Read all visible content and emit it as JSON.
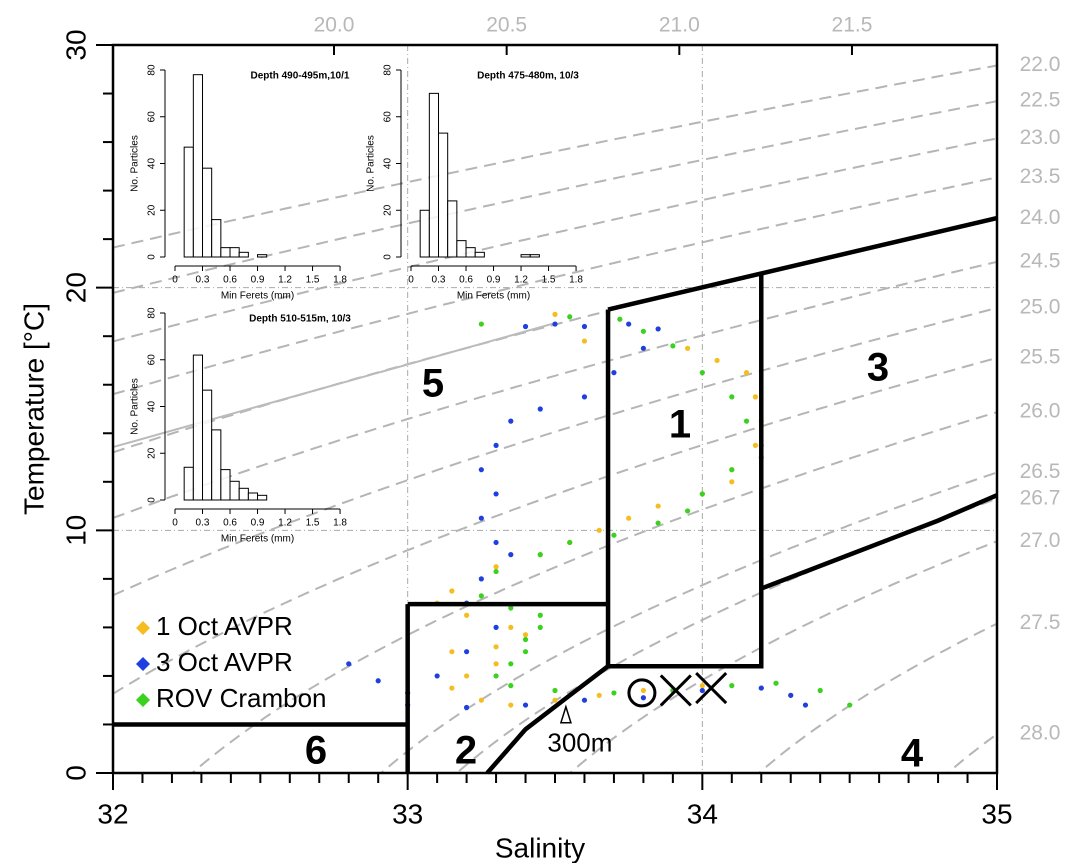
{
  "chart_data": [
    {
      "type": "scatter",
      "xlabel": "Salinity",
      "ylabel": "Temperature [°C]",
      "xlim": [
        32,
        35
      ],
      "ylim": [
        0,
        30
      ],
      "xticks": [
        32,
        33,
        34,
        35
      ],
      "yticks": [
        0,
        10,
        20,
        30
      ],
      "xminorticks": [
        32.1,
        32.2,
        32.3,
        32.4,
        32.5,
        32.6,
        32.7,
        32.8,
        32.9,
        33.1,
        33.2,
        33.3,
        33.4,
        33.5,
        33.6,
        33.7,
        33.8,
        33.9,
        34.1,
        34.2,
        34.3,
        34.4,
        34.5,
        34.6,
        34.7,
        34.8,
        34.9
      ],
      "yminorticks": [
        2,
        4,
        6,
        8,
        12,
        14,
        16,
        18,
        22,
        24,
        26,
        28
      ],
      "x2lim": [
        19.36,
        21.92
      ],
      "x2ticks": [
        {
          "value": 20.0,
          "label": "20.0"
        },
        {
          "value": 20.5,
          "label": "20.5"
        },
        {
          "value": 21.0,
          "label": "21.0"
        },
        {
          "value": 21.5,
          "label": "21.5"
        }
      ],
      "y2ticks": [
        {
          "value": 22.0,
          "label": "22.0"
        },
        {
          "value": 22.5,
          "label": "22.5"
        },
        {
          "value": 23.0,
          "label": "23.0"
        },
        {
          "value": 23.5,
          "label": "23.5"
        },
        {
          "value": 24.0,
          "label": "24.0"
        },
        {
          "value": 24.5,
          "label": "24.5"
        },
        {
          "value": 25.0,
          "label": "25.0"
        },
        {
          "value": 25.5,
          "label": "25.5"
        },
        {
          "value": 26.0,
          "label": "26.0"
        },
        {
          "value": 26.5,
          "label": "26.5"
        },
        26.7,
        {
          "value": 27.0,
          "label": "27.0"
        },
        {
          "value": 27.5,
          "label": "27.5"
        },
        {
          "value": 28.0,
          "label": "28.0"
        }
      ],
      "y2_scale": "sigma_t",
      "density_contours": true,
      "grid": true,
      "legend": "lower left",
      "series": [
        {
          "name": "1 Oct AVPR",
          "color": "#f5bd1f",
          "x": [
            33.5,
            33.6,
            33.68,
            33.85,
            33.95,
            34.05,
            34.15,
            34.18,
            34.2,
            34.18,
            34.1,
            34.1,
            34.0,
            33.85,
            33.75,
            33.65,
            33.55,
            33.45,
            33.3,
            33.15,
            33.1,
            33.2,
            33.35,
            33.4,
            33.3,
            33.15,
            33.3,
            33.2,
            33.15,
            33.25,
            33.2,
            33.35,
            33.5,
            33.65,
            33.8,
            34.0,
            34.2,
            34.3
          ],
          "values": [
            18.9,
            17.8,
            19.0,
            18.3,
            17.5,
            17.0,
            16.5,
            15.5,
            14.5,
            13.5,
            12.5,
            12.0,
            11.5,
            11.0,
            10.5,
            10.0,
            9.5,
            9.0,
            8.5,
            7.5,
            7.0,
            6.5,
            6.0,
            5.7,
            5.2,
            5.0,
            4.5,
            4.0,
            3.5,
            3.0,
            2.7,
            2.8,
            3.0,
            3.2,
            3.4,
            3.6,
            3.5,
            3.2
          ]
        },
        {
          "name": "3 Oct AVPR",
          "color": "#1f3fe0",
          "x": [
            33.4,
            33.5,
            33.6,
            33.75,
            33.85,
            33.8,
            33.7,
            33.6,
            33.45,
            33.35,
            33.3,
            33.25,
            33.3,
            33.25,
            33.3,
            33.35,
            33.25,
            33.2,
            33.3,
            33.2,
            33.1,
            33.0,
            32.9,
            32.8,
            33.0,
            33.2,
            33.4,
            33.6,
            33.8,
            34.0,
            34.2,
            34.3,
            34.35
          ],
          "values": [
            18.4,
            18.5,
            18.4,
            18.5,
            18.3,
            17.5,
            16.5,
            15.5,
            15.0,
            14.5,
            13.5,
            12.5,
            11.5,
            10.5,
            9.5,
            9.0,
            8.0,
            7.0,
            6.0,
            5.0,
            4.0,
            3.3,
            3.8,
            4.5,
            2.8,
            2.7,
            2.8,
            3.0,
            3.1,
            3.4,
            3.5,
            3.2,
            2.8
          ]
        },
        {
          "name": "ROV Crambon",
          "color": "#3bd11f",
          "x": [
            33.25,
            33.55,
            33.72,
            33.8,
            33.9,
            34.0,
            34.1,
            34.15,
            34.2,
            34.2,
            34.1,
            34.0,
            33.95,
            33.85,
            33.7,
            33.55,
            33.45,
            33.3,
            33.25,
            33.35,
            33.45,
            33.45,
            33.4,
            33.4,
            33.35,
            33.3,
            33.35,
            33.5,
            33.7,
            33.9,
            34.1,
            34.25,
            34.4,
            34.5
          ],
          "values": [
            18.5,
            18.8,
            18.7,
            18.2,
            17.6,
            16.5,
            15.5,
            14.5,
            13.5,
            13.0,
            12.5,
            11.5,
            10.8,
            10.3,
            9.8,
            9.5,
            9.0,
            8.3,
            7.3,
            6.8,
            6.5,
            6.0,
            5.5,
            5.0,
            4.5,
            4.0,
            3.6,
            3.4,
            3.3,
            3.4,
            3.6,
            3.7,
            3.4,
            2.8
          ]
        }
      ],
      "boundaries": [
        {
          "x": [
            33.68,
            35
          ],
          "y": [
            19.1,
            22.87
          ]
        },
        {
          "x": [
            33.68,
            33.68,
            34.2,
            34.2
          ],
          "y": [
            19.1,
            4.4,
            4.4,
            20.56
          ]
        },
        {
          "x": [
            33.0,
            33.68
          ],
          "y": [
            6.96,
            6.96
          ]
        },
        {
          "x": [
            33.0,
            33.0
          ],
          "y": [
            0,
            6.96
          ]
        },
        {
          "x": [
            32,
            33.0
          ],
          "y": [
            2.0,
            2.0
          ]
        },
        {
          "x": [
            33.27,
            33.4,
            33.55,
            33.68
          ],
          "y": [
            0,
            1.8,
            3.2,
            4.4
          ]
        },
        {
          "x": [
            34.2,
            34.5,
            34.8,
            35
          ],
          "y": [
            7.6,
            9.0,
            10.4,
            11.45
          ]
        }
      ],
      "reference_line": {
        "color": "#bbbbbb",
        "x": [
          32,
          33.5
        ],
        "y": [
          13.43,
          18.54
        ]
      },
      "region_labels": [
        "1",
        "2",
        "3",
        "4",
        "5",
        "6"
      ],
      "markers": [
        {
          "shape": "circle",
          "x": 33.795,
          "y": 3.3
        },
        {
          "shape": "cross",
          "x": 33.91,
          "y": 3.4
        },
        {
          "shape": "cross",
          "x": 34.03,
          "y": 3.5
        }
      ],
      "annotation": {
        "text": "300m",
        "x": 33.537,
        "y": 2.4
      }
    },
    {
      "type": "histogram",
      "title": "Depth 490-495m,10/1",
      "xlabel": "Min Ferets (mm)",
      "ylabel": "No. Particles",
      "bins": [
        0.1,
        0.2,
        0.3,
        0.4,
        0.5,
        0.6,
        0.7,
        0.8,
        0.9,
        1.0,
        1.1,
        1.2,
        1.3,
        1.4,
        1.5,
        1.6,
        1.7,
        1.8,
        1.9,
        2.0
      ],
      "values": [
        47,
        78,
        38,
        16,
        4,
        4,
        2,
        0,
        1,
        0,
        0,
        0,
        0,
        0,
        0,
        0,
        0,
        0,
        0
      ],
      "xlim": [
        0,
        2.0
      ],
      "ylim": [
        0,
        80
      ],
      "xticks": [
        0,
        0.3,
        0.6,
        0.9,
        1.2,
        1.5,
        1.8
      ],
      "yticks": [
        0,
        20,
        40,
        60,
        80
      ]
    },
    {
      "type": "histogram",
      "title": "Depth 475-480m, 10/3",
      "xlabel": "Min Ferets (mm)",
      "ylabel": "No. Particles",
      "bins": [
        0.1,
        0.2,
        0.3,
        0.4,
        0.5,
        0.6,
        0.7,
        0.8,
        0.9,
        1.0,
        1.1,
        1.2,
        1.3,
        1.4,
        1.5,
        1.6,
        1.7,
        1.8,
        1.9,
        2.0
      ],
      "values": [
        20,
        70,
        53,
        24,
        7,
        4,
        2,
        0,
        0,
        0,
        0,
        1,
        1,
        0,
        0,
        0,
        0,
        0,
        0
      ],
      "xlim": [
        0,
        2.0
      ],
      "ylim": [
        0,
        80
      ],
      "xticks": [
        0,
        0.3,
        0.6,
        0.9,
        1.2,
        1.5,
        1.8
      ],
      "yticks": [
        0,
        20,
        40,
        60,
        80
      ]
    },
    {
      "type": "histogram",
      "title": "Depth 510-515m, 10/3",
      "xlabel": "Min Ferets (mm)",
      "ylabel": "No. Particles",
      "bins": [
        0.1,
        0.2,
        0.3,
        0.4,
        0.5,
        0.6,
        0.7,
        0.8,
        0.9,
        1.0,
        1.1,
        1.2,
        1.3,
        1.4,
        1.5,
        1.6,
        1.7,
        1.8,
        1.9,
        2.0
      ],
      "values": [
        14,
        62,
        47,
        30,
        13,
        8,
        5,
        3,
        2,
        0,
        0,
        0,
        0,
        0,
        0,
        0,
        0,
        0,
        0
      ],
      "xlim": [
        0,
        2.0
      ],
      "ylim": [
        0,
        80
      ],
      "xticks": [
        0,
        0.3,
        0.6,
        0.9,
        1.2,
        1.5,
        1.8
      ],
      "yticks": [
        0,
        20,
        40,
        60,
        80
      ]
    }
  ]
}
